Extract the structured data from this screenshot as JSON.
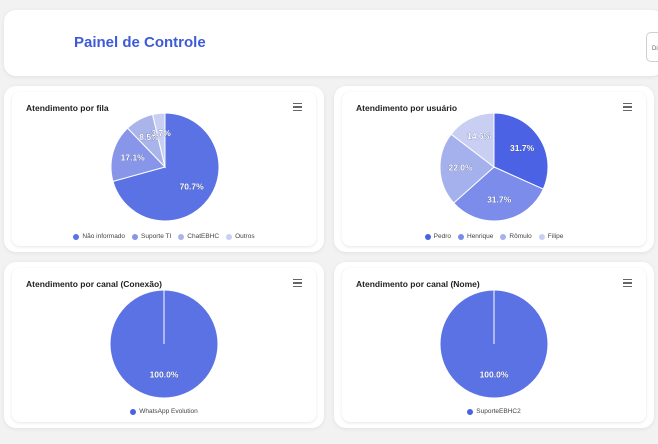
{
  "header": {
    "title": "Painel de Controle",
    "date_label": "Di"
  },
  "charts": [
    {
      "title": "Atendimento por fila",
      "menu_icon": "hamburger-icon",
      "chart_data": {
        "type": "pie",
        "categories": [
          "Não informado",
          "Suporte TI",
          "ChatEBHC",
          "Outros"
        ],
        "values": [
          70.7,
          17.1,
          8.5,
          3.7
        ],
        "labels": [
          "70.7%",
          "17.1%",
          "8.5%",
          "3.7%"
        ],
        "colors": [
          "#5b72e5",
          "#8796e8",
          "#a9b4ea",
          "#c8cff2"
        ],
        "legend_position": "bottom"
      }
    },
    {
      "title": "Atendimento por usuário",
      "menu_icon": "hamburger-icon",
      "chart_data": {
        "type": "pie",
        "categories": [
          "Pedro",
          "Henrique",
          "Rômulo",
          "Filipe"
        ],
        "values": [
          31.7,
          31.7,
          22.0,
          14.6
        ],
        "labels": [
          "31.7%",
          "31.7%",
          "22.0%",
          "14.6%"
        ],
        "colors": [
          "#4a62e3",
          "#7b8cea",
          "#a5b1ec",
          "#c8cff2"
        ],
        "legend_position": "bottom"
      }
    },
    {
      "title": "Atendimento por canal (Conexão)",
      "menu_icon": "hamburger-icon",
      "chart_data": {
        "type": "pie",
        "categories": [
          "WhatsApp Evolution"
        ],
        "values": [
          100.0
        ],
        "labels": [
          "100.0%"
        ],
        "colors": [
          "#5b72e5"
        ],
        "legend_position": "bottom"
      }
    },
    {
      "title": "Atendimento por canal (Nome)",
      "menu_icon": "hamburger-icon",
      "chart_data": {
        "type": "pie",
        "categories": [
          "SuporteEBHC2"
        ],
        "values": [
          100.0
        ],
        "labels": [
          "100.0%"
        ],
        "colors": [
          "#5b72e5"
        ],
        "legend_position": "bottom"
      }
    }
  ]
}
